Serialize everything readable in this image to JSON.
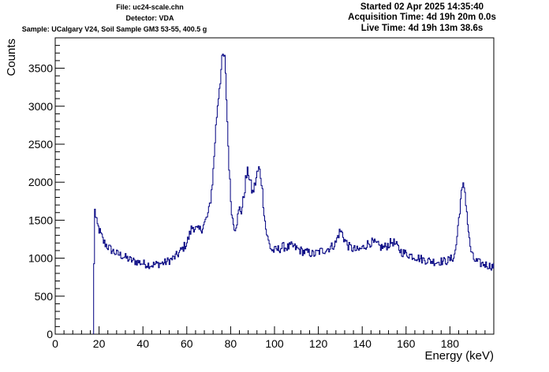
{
  "header": {
    "file": "File: uc24-scale.chn",
    "detector": "Detector: VDA",
    "sample": "Sample: UCalgary V24, Soil Sample GM3 53-55, 400.5 g",
    "started": "Started 02 Apr 2025 14:35:40",
    "acquisition": "Acquisition Time: 4d 19h 20m 0.0s",
    "live": "Live Time: 4d 19h 13m 38.6s"
  },
  "chart_data": {
    "type": "line",
    "title": "",
    "xlabel": "Energy (keV)",
    "ylabel": "Counts",
    "xlim": [
      0,
      200
    ],
    "ylim": [
      0,
      3900
    ],
    "xticks": [
      0,
      20,
      40,
      60,
      80,
      100,
      120,
      140,
      160,
      180
    ],
    "yticks": [
      0,
      500,
      1000,
      1500,
      2000,
      2500,
      3000,
      3500
    ],
    "line_color": "#000080",
    "grid": false,
    "series": [
      {
        "x": [
          17.5,
          17.9,
          18.2,
          18.5,
          19,
          20,
          21,
          22,
          24,
          26,
          28,
          30,
          32,
          34,
          36,
          38,
          40,
          42,
          44,
          46,
          48,
          50,
          52,
          54,
          56,
          58,
          60,
          61,
          62,
          63,
          64,
          65,
          66,
          67,
          68,
          69,
          70,
          71,
          72,
          73,
          74,
          75,
          76,
          76.7,
          77.3,
          78,
          79,
          80,
          81,
          82,
          83,
          84,
          85,
          86,
          87,
          88,
          89,
          90,
          91,
          92,
          93,
          94,
          95,
          96,
          97,
          98,
          99,
          100,
          102,
          104,
          106,
          108,
          110,
          112,
          114,
          116,
          118,
          120,
          122,
          124,
          126,
          128,
          129,
          130,
          131,
          132,
          134,
          136,
          138,
          140,
          142,
          144,
          146,
          148,
          150,
          152,
          154,
          156,
          158,
          160,
          162,
          164,
          166,
          168,
          170,
          172,
          174,
          176,
          178,
          180,
          182,
          183,
          184,
          185,
          186,
          186.5,
          187,
          188,
          189,
          190,
          191,
          192,
          194,
          196,
          198,
          200
        ],
        "values": [
          0,
          1820,
          1600,
          1520,
          1450,
          1380,
          1300,
          1220,
          1150,
          1100,
          1060,
          1040,
          1010,
          980,
          960,
          950,
          930,
          920,
          910,
          920,
          930,
          940,
          970,
          1000,
          1050,
          1120,
          1200,
          1280,
          1380,
          1420,
          1390,
          1360,
          1370,
          1400,
          1450,
          1520,
          1600,
          1800,
          2100,
          2600,
          3000,
          3300,
          3550,
          3680,
          3600,
          3200,
          2400,
          1800,
          1480,
          1400,
          1500,
          1650,
          1620,
          1800,
          2050,
          2150,
          2000,
          1850,
          1950,
          2100,
          2180,
          2050,
          1700,
          1400,
          1250,
          1150,
          1100,
          1100,
          1120,
          1150,
          1140,
          1160,
          1130,
          1100,
          1080,
          1070,
          1050,
          1080,
          1100,
          1120,
          1150,
          1200,
          1300,
          1360,
          1320,
          1240,
          1150,
          1120,
          1100,
          1130,
          1180,
          1210,
          1190,
          1150,
          1140,
          1180,
          1220,
          1150,
          1080,
          1060,
          1040,
          1020,
          1000,
          980,
          970,
          960,
          950,
          960,
          960,
          980,
          1020,
          1200,
          1500,
          1800,
          1930,
          1950,
          1850,
          1500,
          1200,
          1050,
          980,
          960,
          930,
          920,
          900,
          890
        ]
      }
    ]
  }
}
